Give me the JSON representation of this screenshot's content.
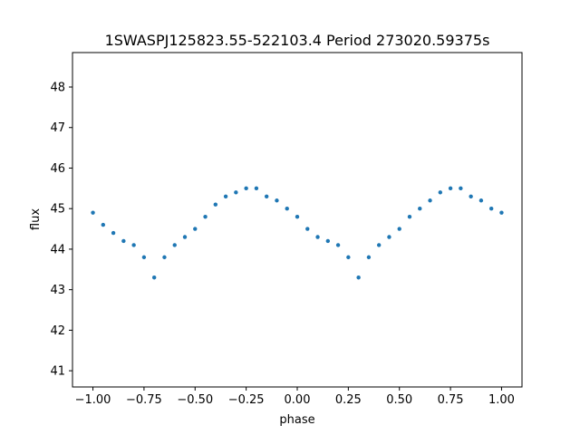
{
  "chart_data": {
    "type": "scatter",
    "title": "1SWASPJ125823.55-522103.4 Period 273020.59375s",
    "xlabel": "phase",
    "ylabel": "flux",
    "xlim": [
      -1.1,
      1.1
    ],
    "ylim": [
      40.6,
      48.85
    ],
    "xticks": [
      -1.0,
      -0.75,
      -0.5,
      -0.25,
      0.0,
      0.25,
      0.5,
      0.75,
      1.0
    ],
    "xtick_labels": [
      "−1.00",
      "−0.75",
      "−0.50",
      "−0.25",
      "0.00",
      "0.25",
      "0.50",
      "0.75",
      "1.00"
    ],
    "yticks": [
      41,
      42,
      43,
      44,
      45,
      46,
      47,
      48
    ],
    "ytick_labels": [
      "41",
      "42",
      "43",
      "44",
      "45",
      "46",
      "47",
      "48"
    ],
    "grid": false,
    "marker_color": "#1f77b4",
    "series": [
      {
        "x": [
          -1.0,
          -0.95,
          -0.9,
          -0.85,
          -0.8,
          -0.75,
          -0.7,
          -0.65,
          -0.6,
          -0.55,
          -0.5,
          -0.45,
          -0.4,
          -0.35,
          -0.3,
          -0.25,
          -0.2,
          -0.15,
          -0.1,
          -0.05,
          0.0,
          0.05,
          0.1,
          0.15,
          0.2,
          0.25,
          0.3,
          0.35,
          0.4,
          0.45,
          0.5,
          0.55,
          0.6,
          0.65,
          0.7,
          0.75,
          0.8,
          0.85,
          0.9,
          0.95,
          1.0
        ],
        "y": [
          44.9,
          44.6,
          44.4,
          44.2,
          44.1,
          43.8,
          43.3,
          43.8,
          44.1,
          44.3,
          44.5,
          44.8,
          45.1,
          45.3,
          45.4,
          45.5,
          45.5,
          45.3,
          45.2,
          45.0,
          44.8,
          44.5,
          44.3,
          44.2,
          44.1,
          43.8,
          43.3,
          43.8,
          44.1,
          44.3,
          44.5,
          44.8,
          45.0,
          45.2,
          45.4,
          45.5,
          45.5,
          45.3,
          45.2,
          45.0,
          44.9
        ]
      }
    ]
  }
}
